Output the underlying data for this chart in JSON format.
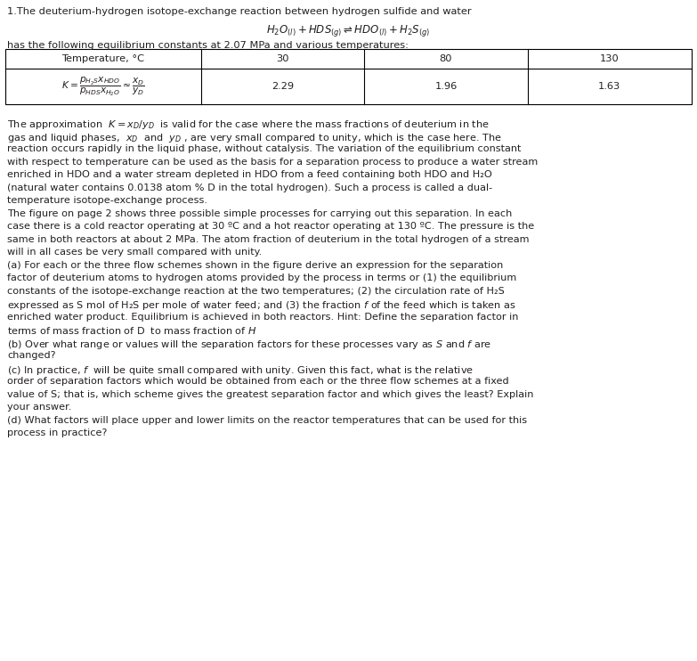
{
  "title_line": "1.The deuterium-hydrogen isotope-exchange reaction between hydrogen sulfide and water",
  "reaction_equation": "$H_2O_{(l)} + HDS_{(g)} \\rightleftharpoons HDO_{(l)} + H_2S_{(g)}$",
  "subtitle": "has the following equilibrium constants at 2.07 MPa and various temperatures:",
  "table_col_labels": [
    "Temperature, °C",
    "30",
    "80",
    "130"
  ],
  "table_row2_label_parts": {
    "K_eq": "$K = \\dfrac{p_{H_2S}x_{HDO}}{p_{HDS}x_{H_2O}} \\approx \\dfrac{x_D}{y_D}$"
  },
  "table_values": [
    "2.29",
    "1.96",
    "1.63"
  ],
  "body_text": [
    "The approximation  $K=x_D/y_D$  is valid for the case where the mass fractions of deuterium in the",
    "gas and liquid phases,  $x_D$  and  $y_D$ , are very small compared to unity, which is the case here. The",
    "reaction occurs rapidly in the liquid phase, without catalysis. The variation of the equilibrium constant",
    "with respect to temperature can be used as the basis for a separation process to produce a water stream",
    "enriched in HDO and a water stream depleted in HDO from a feed containing both HDO and H₂O",
    "(natural water contains 0.0138 atom % D in the total hydrogen). Such a process is called a dual-",
    "temperature isotope-exchange process.",
    "The figure on page 2 shows three possible simple processes for carrying out this separation. In each",
    "case there is a cold reactor operating at 30 ºC and a hot reactor operating at 130 ºC. The pressure is the",
    "same in both reactors at about 2 MPa. The atom fraction of deuterium in the total hydrogen of a stream",
    "will in all cases be very small compared with unity.",
    "(a) For each or the three flow schemes shown in the figure derive an expression for the separation",
    "factor of deuterium atoms to hydrogen atoms provided by the process in terms or (1) the equilibrium",
    "constants of the isotope-exchange reaction at the two temperatures; (2) the circulation rate of H₂S",
    "expressed as S mol of H₂S per mole of water feed; and (3) the fraction $f$ of the feed which is taken as",
    "enriched water product. Equilibrium is achieved in both reactors. Hint: Define the separation factor in",
    "terms of mass fraction of D  to mass fraction of $H$",
    "(b) Over what range or values will the separation factors for these processes vary as $S$ and $f$ are",
    "changed?",
    "(c) In practice, $f$  will be quite small compared with unity. Given this fact, what is the relative",
    "order of separation factors which would be obtained from each or the three flow schemes at a fixed",
    "value of S; that is, which scheme gives the greatest separation factor and which gives the least? Explain",
    "your answer.",
    "(d) What factors will place upper and lower limits on the reactor temperatures that can be used for this",
    "process in practice?"
  ],
  "bg_color": "#ffffff",
  "text_color": "#231f20",
  "font_size": 8.2,
  "table_font_size": 8.0,
  "fig_width": 7.83,
  "fig_height": 7.42,
  "dpi": 100
}
